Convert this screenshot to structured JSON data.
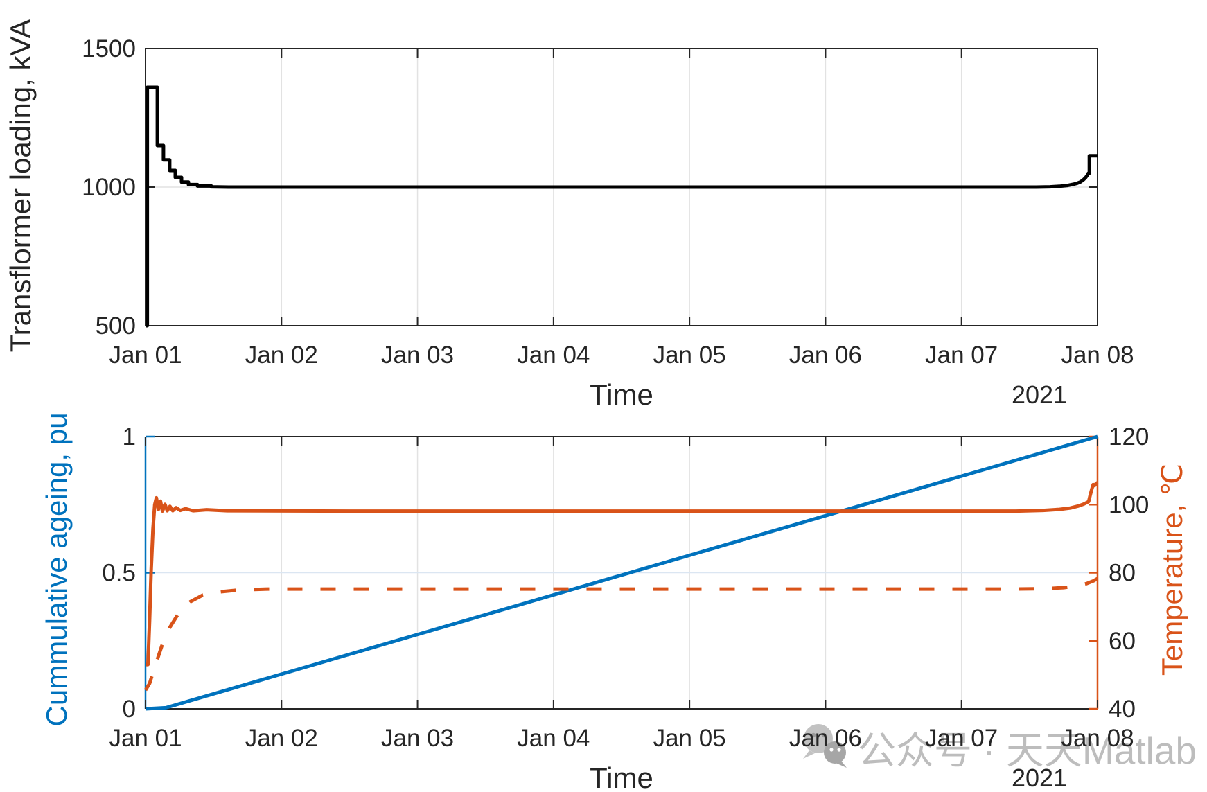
{
  "figure": {
    "background": "#ffffff",
    "watermark": {
      "logo_icon": "wechat-icon",
      "text": "公众号 · 天天Matlab",
      "color": "#bdbdbd"
    }
  },
  "chart_data": [
    {
      "type": "line",
      "title": "",
      "xlabel": "Time",
      "x_secondary_label": "2021",
      "ylabel": "Transflormer loading, kVA",
      "xlim": [
        1,
        8
      ],
      "ylim": [
        500,
        1500
      ],
      "xticks": [
        1,
        2,
        3,
        4,
        5,
        6,
        7,
        8
      ],
      "xticklabels": [
        "Jan 01",
        "Jan 02",
        "Jan 03",
        "Jan 04",
        "Jan 05",
        "Jan 06",
        "Jan 07",
        "Jan 08"
      ],
      "yticks": [
        500,
        1000,
        1500
      ],
      "yticklabels": [
        "500",
        "1000",
        "1500"
      ],
      "grid": true,
      "grid_y": [
        1000
      ],
      "axis_color": "#252525",
      "legend": "none",
      "series": [
        {
          "name": "transformer-loading",
          "color": "#000000",
          "line_width": 5,
          "dash": false,
          "points": [
            [
              1.0,
              500
            ],
            [
              1.013,
              500
            ],
            [
              1.013,
              1360
            ],
            [
              1.087,
              1360
            ],
            [
              1.087,
              1150
            ],
            [
              1.132,
              1150
            ],
            [
              1.132,
              1098
            ],
            [
              1.178,
              1098
            ],
            [
              1.178,
              1060
            ],
            [
              1.219,
              1060
            ],
            [
              1.219,
              1035
            ],
            [
              1.265,
              1035
            ],
            [
              1.265,
              1018
            ],
            [
              1.316,
              1018
            ],
            [
              1.316,
              1009
            ],
            [
              1.382,
              1009
            ],
            [
              1.382,
              1004
            ],
            [
              1.484,
              1004
            ],
            [
              1.484,
              1001
            ],
            [
              1.611,
              1000
            ],
            [
              7.55,
              1000
            ],
            [
              7.65,
              1001
            ],
            [
              7.72,
              1003
            ],
            [
              7.78,
              1006
            ],
            [
              7.82,
              1010
            ],
            [
              7.85,
              1014
            ],
            [
              7.875,
              1019
            ],
            [
              7.895,
              1026
            ],
            [
              7.912,
              1034
            ],
            [
              7.925,
              1043
            ],
            [
              7.932,
              1050
            ],
            [
              7.94,
              1050
            ],
            [
              7.94,
              1113
            ],
            [
              8.0,
              1113
            ]
          ]
        }
      ]
    },
    {
      "type": "line",
      "title": "",
      "xlabel": "Time",
      "x_secondary_label": "2021",
      "ylabel_left": "Cummulative ageing, pu",
      "ylabel_right": "Temperature, ℃",
      "xlim": [
        1,
        8
      ],
      "ylim_left": [
        0,
        1
      ],
      "ylim_right": [
        40,
        120
      ],
      "xticks": [
        1,
        2,
        3,
        4,
        5,
        6,
        7,
        8
      ],
      "xticklabels": [
        "Jan 01",
        "Jan 02",
        "Jan 03",
        "Jan 04",
        "Jan 05",
        "Jan 06",
        "Jan 07",
        "Jan 08"
      ],
      "yticks_left": [
        0,
        0.5,
        1
      ],
      "yticklabels_left": [
        "0",
        "0.5",
        "1"
      ],
      "yticks_right": [
        40,
        60,
        80,
        100,
        120
      ],
      "yticklabels_right": [
        "40",
        "60",
        "80",
        "100",
        "120"
      ],
      "grid": true,
      "grid_y_left": [
        0.5
      ],
      "x_axis_color": "#252525",
      "left_axis_color": "#0072BD",
      "right_axis_color": "#D95319",
      "legend": "none",
      "series": [
        {
          "name": "cumulative-ageing",
          "axis": "left",
          "color": "#0072BD",
          "line_width": 5,
          "dash": false,
          "points": [
            [
              1.0,
              0.0
            ],
            [
              1.15,
              0.004
            ],
            [
              8.0,
              1.0
            ]
          ]
        },
        {
          "name": "temperature-solid",
          "axis": "right",
          "color": "#D95319",
          "line_width": 5,
          "dash": false,
          "points": [
            [
              1.0,
              53
            ],
            [
              1.018,
              53
            ],
            [
              1.03,
              66
            ],
            [
              1.042,
              81
            ],
            [
              1.055,
              93
            ],
            [
              1.068,
              100
            ],
            [
              1.08,
              102
            ],
            [
              1.095,
              98.6
            ],
            [
              1.11,
              101
            ],
            [
              1.125,
              98.1
            ],
            [
              1.143,
              100.1
            ],
            [
              1.16,
              98.2
            ],
            [
              1.18,
              99.5
            ],
            [
              1.2,
              98.2
            ],
            [
              1.225,
              99.1
            ],
            [
              1.255,
              98.3
            ],
            [
              1.295,
              98.8
            ],
            [
              1.35,
              98.2
            ],
            [
              1.45,
              98.5
            ],
            [
              1.6,
              98.2
            ],
            [
              2.5,
              98.1
            ],
            [
              7.4,
              98.1
            ],
            [
              7.6,
              98.3
            ],
            [
              7.72,
              98.6
            ],
            [
              7.8,
              99.0
            ],
            [
              7.86,
              99.6
            ],
            [
              7.9,
              100.2
            ],
            [
              7.92,
              100.6
            ],
            [
              7.935,
              100.9
            ],
            [
              7.945,
              102.6
            ],
            [
              7.958,
              104.6
            ],
            [
              7.968,
              105.9
            ],
            [
              7.978,
              105.6
            ],
            [
              7.988,
              106.1
            ],
            [
              8.0,
              106.5
            ]
          ]
        },
        {
          "name": "temperature-dashed",
          "axis": "right",
          "color": "#D95319",
          "line_width": 5,
          "dash": true,
          "points": [
            [
              1.0,
              45.5
            ],
            [
              1.03,
              47.5
            ],
            [
              1.07,
              52.5
            ],
            [
              1.12,
              58.5
            ],
            [
              1.18,
              64.0
            ],
            [
              1.25,
              68.5
            ],
            [
              1.33,
              71.5
            ],
            [
              1.42,
              73.4
            ],
            [
              1.53,
              74.3
            ],
            [
              1.68,
              74.9
            ],
            [
              1.9,
              75.2
            ],
            [
              7.4,
              75.2
            ],
            [
              7.6,
              75.3
            ],
            [
              7.75,
              75.6
            ],
            [
              7.85,
              76.1
            ],
            [
              7.92,
              76.8
            ],
            [
              7.97,
              77.6
            ],
            [
              8.0,
              78.3
            ]
          ]
        }
      ]
    }
  ]
}
